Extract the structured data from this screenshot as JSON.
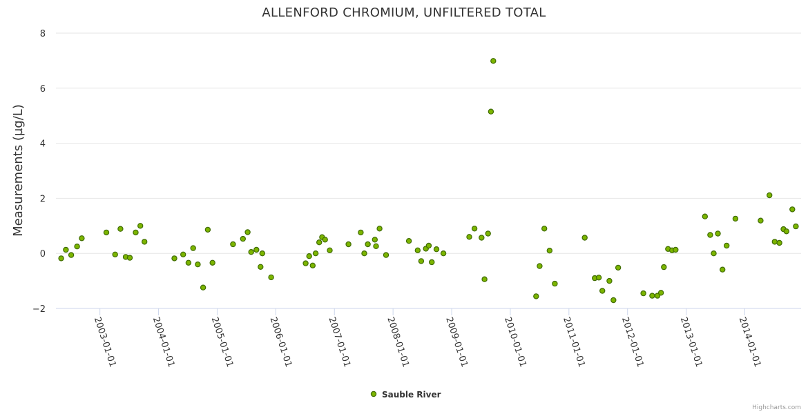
{
  "chart_data": {
    "type": "scatter",
    "title": "ALLENFORD CHROMIUM, UNFILTERED TOTAL",
    "xlabel": "",
    "ylabel": "Measurements (µg/L)",
    "ylim": [
      -2,
      8
    ],
    "yticks": [
      -2,
      0,
      2,
      4,
      6,
      8
    ],
    "ytick_labels": [
      "−2",
      "0",
      "2",
      "4",
      "6",
      "8"
    ],
    "xlim": [
      2002.25,
      2014.96
    ],
    "xticks": [
      2003,
      2004,
      2005,
      2006,
      2007,
      2008,
      2009,
      2010,
      2011,
      2012,
      2013,
      2014
    ],
    "xtick_labels": [
      "2003-01-01",
      "2004-01-01",
      "2005-01-01",
      "2006-01-01",
      "2007-01-01",
      "2008-01-01",
      "2009-01-01",
      "2010-01-01",
      "2011-01-01",
      "2012-01-01",
      "2013-01-01",
      "2014-01-01"
    ],
    "legend_position": "bottom-center",
    "series": [
      {
        "name": "Sauble River",
        "color": "#7cb500",
        "points": [
          {
            "x": 2002.34,
            "y": -0.18
          },
          {
            "x": 2002.42,
            "y": 0.13
          },
          {
            "x": 2002.51,
            "y": -0.06
          },
          {
            "x": 2002.61,
            "y": 0.25
          },
          {
            "x": 2002.69,
            "y": 0.55
          },
          {
            "x": 2003.11,
            "y": 0.76
          },
          {
            "x": 2003.26,
            "y": -0.04
          },
          {
            "x": 2003.35,
            "y": 0.89
          },
          {
            "x": 2003.44,
            "y": -0.13
          },
          {
            "x": 2003.51,
            "y": -0.16
          },
          {
            "x": 2003.61,
            "y": 0.76
          },
          {
            "x": 2003.69,
            "y": 1.0
          },
          {
            "x": 2003.76,
            "y": 0.42
          },
          {
            "x": 2004.27,
            "y": -0.18
          },
          {
            "x": 2004.42,
            "y": -0.04
          },
          {
            "x": 2004.51,
            "y": -0.34
          },
          {
            "x": 2004.59,
            "y": 0.19
          },
          {
            "x": 2004.67,
            "y": -0.4
          },
          {
            "x": 2004.76,
            "y": -1.24
          },
          {
            "x": 2004.84,
            "y": 0.86
          },
          {
            "x": 2004.92,
            "y": -0.34
          },
          {
            "x": 2005.27,
            "y": 0.33
          },
          {
            "x": 2005.44,
            "y": 0.53
          },
          {
            "x": 2005.52,
            "y": 0.77
          },
          {
            "x": 2005.58,
            "y": 0.05
          },
          {
            "x": 2005.67,
            "y": 0.13
          },
          {
            "x": 2005.74,
            "y": -0.49
          },
          {
            "x": 2005.77,
            "y": 0.0
          },
          {
            "x": 2005.92,
            "y": -0.87
          },
          {
            "x": 2006.51,
            "y": -0.36
          },
          {
            "x": 2006.57,
            "y": -0.1
          },
          {
            "x": 2006.63,
            "y": -0.44
          },
          {
            "x": 2006.68,
            "y": 0.0
          },
          {
            "x": 2006.74,
            "y": 0.4
          },
          {
            "x": 2006.79,
            "y": 0.59
          },
          {
            "x": 2006.84,
            "y": 0.5
          },
          {
            "x": 2006.92,
            "y": 0.11
          },
          {
            "x": 2007.24,
            "y": 0.33
          },
          {
            "x": 2007.45,
            "y": 0.76
          },
          {
            "x": 2007.51,
            "y": 0.0
          },
          {
            "x": 2007.57,
            "y": 0.33
          },
          {
            "x": 2007.69,
            "y": 0.5
          },
          {
            "x": 2007.71,
            "y": 0.26
          },
          {
            "x": 2007.77,
            "y": 0.9
          },
          {
            "x": 2007.88,
            "y": -0.06
          },
          {
            "x": 2008.27,
            "y": 0.45
          },
          {
            "x": 2008.42,
            "y": 0.11
          },
          {
            "x": 2008.48,
            "y": -0.28
          },
          {
            "x": 2008.56,
            "y": 0.17
          },
          {
            "x": 2008.61,
            "y": 0.28
          },
          {
            "x": 2008.66,
            "y": -0.32
          },
          {
            "x": 2008.74,
            "y": 0.15
          },
          {
            "x": 2008.86,
            "y": 0.0
          },
          {
            "x": 2009.3,
            "y": 0.6
          },
          {
            "x": 2009.39,
            "y": 0.9
          },
          {
            "x": 2009.51,
            "y": 0.57
          },
          {
            "x": 2009.56,
            "y": -0.94
          },
          {
            "x": 2009.62,
            "y": 0.72
          },
          {
            "x": 2009.67,
            "y": 5.15
          },
          {
            "x": 2009.71,
            "y": 6.99
          },
          {
            "x": 2010.44,
            "y": -1.56
          },
          {
            "x": 2010.5,
            "y": -0.46
          },
          {
            "x": 2010.58,
            "y": 0.9
          },
          {
            "x": 2010.67,
            "y": 0.1
          },
          {
            "x": 2010.76,
            "y": -1.1
          },
          {
            "x": 2011.27,
            "y": 0.57
          },
          {
            "x": 2011.44,
            "y": -0.9
          },
          {
            "x": 2011.51,
            "y": -0.88
          },
          {
            "x": 2011.57,
            "y": -1.36
          },
          {
            "x": 2011.69,
            "y": -1.0
          },
          {
            "x": 2011.76,
            "y": -1.7
          },
          {
            "x": 2011.84,
            "y": -0.52
          },
          {
            "x": 2012.27,
            "y": -1.45
          },
          {
            "x": 2012.42,
            "y": -1.54
          },
          {
            "x": 2012.51,
            "y": -1.54
          },
          {
            "x": 2012.57,
            "y": -1.43
          },
          {
            "x": 2012.62,
            "y": -0.5
          },
          {
            "x": 2012.69,
            "y": 0.16
          },
          {
            "x": 2012.76,
            "y": 0.11
          },
          {
            "x": 2012.82,
            "y": 0.13
          },
          {
            "x": 2013.32,
            "y": 1.34
          },
          {
            "x": 2013.41,
            "y": 0.67
          },
          {
            "x": 2013.47,
            "y": 0.0
          },
          {
            "x": 2013.54,
            "y": 0.72
          },
          {
            "x": 2013.62,
            "y": -0.59
          },
          {
            "x": 2013.69,
            "y": 0.28
          },
          {
            "x": 2013.84,
            "y": 1.26
          },
          {
            "x": 2014.27,
            "y": 1.19
          },
          {
            "x": 2014.42,
            "y": 2.11
          },
          {
            "x": 2014.51,
            "y": 0.42
          },
          {
            "x": 2014.59,
            "y": 0.38
          },
          {
            "x": 2014.66,
            "y": 0.88
          },
          {
            "x": 2014.71,
            "y": 0.8
          },
          {
            "x": 2014.81,
            "y": 1.6
          },
          {
            "x": 2014.87,
            "y": 0.98
          }
        ]
      }
    ]
  },
  "credits": "Highcharts.com"
}
